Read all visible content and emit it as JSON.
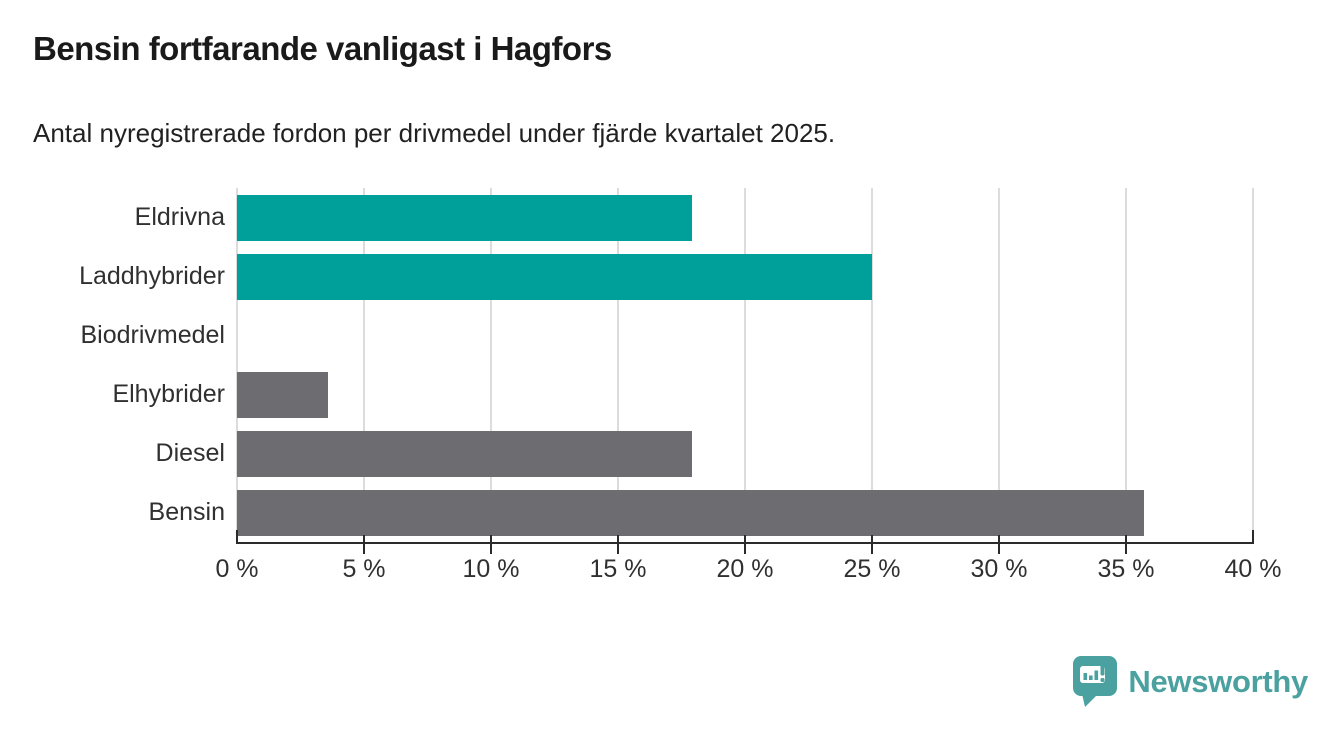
{
  "header": {
    "title": "Bensin fortfarande vanligast i Hagfors",
    "subtitle": "Antal nyregistrerade fordon per drivmedel under fjärde kvartalet 2025."
  },
  "chart_data": {
    "type": "bar",
    "orientation": "horizontal",
    "title": "Bensin fortfarande vanligast i Hagfors",
    "subtitle": "Antal nyregistrerade fordon per drivmedel under fjärde kvartalet 2025.",
    "categories": [
      "Eldrivna",
      "Laddhybrider",
      "Biodrivmedel",
      "Elhybrider",
      "Diesel",
      "Bensin"
    ],
    "values": [
      17.9,
      25,
      0,
      3.6,
      17.9,
      35.7
    ],
    "bar_colors": [
      "#00A09A",
      "#00A09A",
      "#6C6C71",
      "#6C6C71",
      "#6C6C71",
      "#6C6C71"
    ],
    "xlabel": "",
    "ylabel": "",
    "xlim": [
      0,
      40
    ],
    "x_ticks": [
      0,
      5,
      10,
      15,
      20,
      25,
      30,
      35,
      40
    ],
    "x_tick_labels": [
      "0 %",
      "5 %",
      "10 %",
      "15 %",
      "20 %",
      "25 %",
      "30 %",
      "35 %",
      "40 %"
    ],
    "grid": true,
    "legend": false,
    "unit": "%"
  },
  "branding": {
    "logo_text": "Newsworthy",
    "logo_color": "#4AA1A0"
  },
  "colors": {
    "highlight_teal": "#00A09A",
    "neutral_gray": "#6C6C71",
    "axis": "#2B2B2B",
    "gridline": "#DCDCDC",
    "text_dark": "#1A1A1A"
  }
}
